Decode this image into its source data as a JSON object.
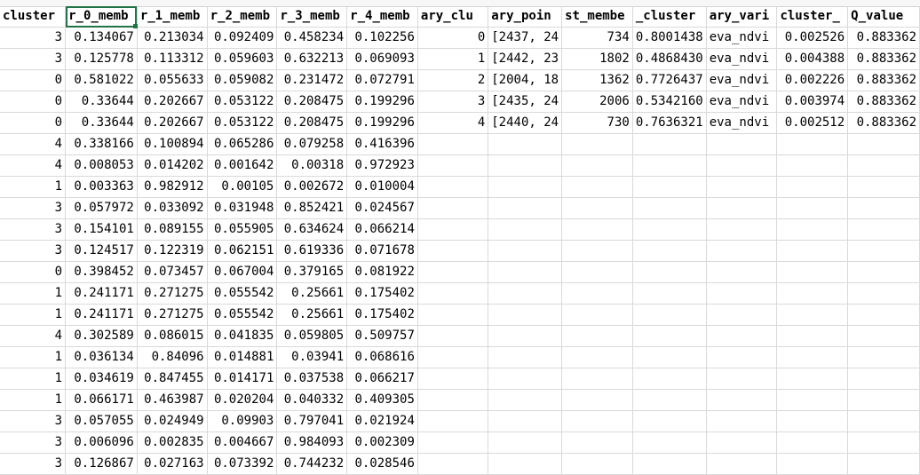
{
  "header": [
    "cluster",
    "r_0_memb",
    "r_1_memb",
    "r_2_memb",
    "r_3_memb",
    "r_4_memb",
    "ary_clu",
    "ary_poin",
    "st_membe",
    "_cluster",
    "ary_vari",
    "cluster_",
    "Q_value"
  ],
  "rows": [
    [
      "3",
      "0.134067",
      "0.213034",
      "0.092409",
      "0.458234",
      "0.102256",
      "0",
      "[2437,  24",
      "734",
      "0.8001438",
      "eva_ndvi",
      "0.002526",
      "0.883362"
    ],
    [
      "3",
      "0.125778",
      "0.113312",
      "0.059603",
      "0.632213",
      "0.069093",
      "1",
      "[2442,  23",
      "1802",
      "0.4868430",
      "eva_ndvi",
      "0.004388",
      "0.883362"
    ],
    [
      "0",
      "0.581022",
      "0.055633",
      "0.059082",
      "0.231472",
      "0.072791",
      "2",
      "[2004,  18",
      "1362",
      "0.7726437",
      "eva_ndvi",
      "0.002226",
      "0.883362"
    ],
    [
      "0",
      "0.33644",
      "0.202667",
      "0.053122",
      "0.208475",
      "0.199296",
      "3",
      "[2435,  24",
      "2006",
      "0.5342160",
      "eva_ndvi",
      "0.003974",
      "0.883362"
    ],
    [
      "0",
      "0.33644",
      "0.202667",
      "0.053122",
      "0.208475",
      "0.199296",
      "4",
      "[2440,  24",
      "730",
      "0.7636321",
      "eva_ndvi",
      "0.002512",
      "0.883362"
    ],
    [
      "4",
      "0.338166",
      "0.100894",
      "0.065286",
      "0.079258",
      "0.416396",
      "",
      "",
      "",
      "",
      "",
      "",
      ""
    ],
    [
      "4",
      "0.008053",
      "0.014202",
      "0.001642",
      "0.00318",
      "0.972923",
      "",
      "",
      "",
      "",
      "",
      "",
      ""
    ],
    [
      "1",
      "0.003363",
      "0.982912",
      "0.00105",
      "0.002672",
      "0.010004",
      "",
      "",
      "",
      "",
      "",
      "",
      ""
    ],
    [
      "3",
      "0.057972",
      "0.033092",
      "0.031948",
      "0.852421",
      "0.024567",
      "",
      "",
      "",
      "",
      "",
      "",
      ""
    ],
    [
      "3",
      "0.154101",
      "0.089155",
      "0.055905",
      "0.634624",
      "0.066214",
      "",
      "",
      "",
      "",
      "",
      "",
      ""
    ],
    [
      "3",
      "0.124517",
      "0.122319",
      "0.062151",
      "0.619336",
      "0.071678",
      "",
      "",
      "",
      "",
      "",
      "",
      ""
    ],
    [
      "0",
      "0.398452",
      "0.073457",
      "0.067004",
      "0.379165",
      "0.081922",
      "",
      "",
      "",
      "",
      "",
      "",
      ""
    ],
    [
      "1",
      "0.241171",
      "0.271275",
      "0.055542",
      "0.25661",
      "0.175402",
      "",
      "",
      "",
      "",
      "",
      "",
      ""
    ],
    [
      "1",
      "0.241171",
      "0.271275",
      "0.055542",
      "0.25661",
      "0.175402",
      "",
      "",
      "",
      "",
      "",
      "",
      ""
    ],
    [
      "4",
      "0.302589",
      "0.086015",
      "0.041835",
      "0.059805",
      "0.509757",
      "",
      "",
      "",
      "",
      "",
      "",
      ""
    ],
    [
      "1",
      "0.036134",
      "0.84096",
      "0.014881",
      "0.03941",
      "0.068616",
      "",
      "",
      "",
      "",
      "",
      "",
      ""
    ],
    [
      "1",
      "0.034619",
      "0.847455",
      "0.014171",
      "0.037538",
      "0.066217",
      "",
      "",
      "",
      "",
      "",
      "",
      ""
    ],
    [
      "1",
      "0.066171",
      "0.463987",
      "0.020204",
      "0.040332",
      "0.409305",
      "",
      "",
      "",
      "",
      "",
      "",
      ""
    ],
    [
      "3",
      "0.057055",
      "0.024949",
      "0.09903",
      "0.797041",
      "0.021924",
      "",
      "",
      "",
      "",
      "",
      "",
      ""
    ],
    [
      "3",
      "0.006096",
      "0.002835",
      "0.004667",
      "0.984093",
      "0.002309",
      "",
      "",
      "",
      "",
      "",
      "",
      ""
    ],
    [
      "3",
      "0.126867",
      "0.027163",
      "0.073392",
      "0.744232",
      "0.028546",
      "",
      "",
      "",
      "",
      "",
      "",
      ""
    ]
  ],
  "column_align": [
    "num",
    "num",
    "num",
    "num",
    "num",
    "num",
    "num",
    "txt",
    "num",
    "num",
    "txt",
    "num",
    "num"
  ],
  "selected": {
    "row": "header",
    "col": 1
  },
  "colors": {
    "grid": "#d9d9d9",
    "selection": "#217346",
    "text": "#000000"
  }
}
